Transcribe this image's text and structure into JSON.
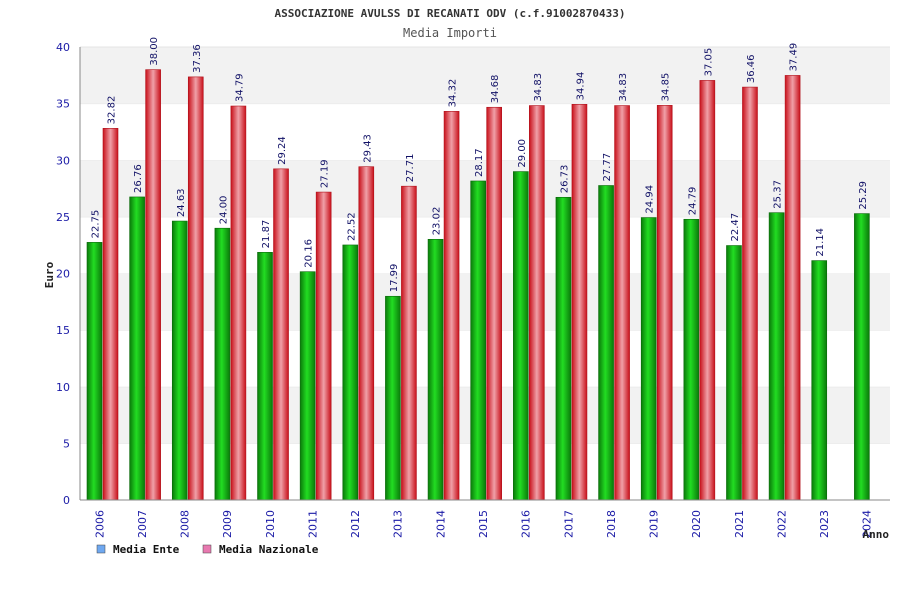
{
  "chart_data": {
    "type": "bar",
    "title": "ASSOCIAZIONE AVULSS DI RECANATI ODV (c.f.91002870433)",
    "subtitle": "Media Importi",
    "xlabel": "Anno",
    "ylabel": "Euro",
    "ylim": [
      0,
      40
    ],
    "yticks": [
      "0",
      "5",
      "10",
      "15",
      "20",
      "25",
      "30",
      "35",
      "40"
    ],
    "grid": true,
    "legend_position": "bottom-left",
    "categories": [
      "2006",
      "2007",
      "2008",
      "2009",
      "2010",
      "2011",
      "2012",
      "2013",
      "2014",
      "2015",
      "2016",
      "2017",
      "2018",
      "2019",
      "2020",
      "2021",
      "2022",
      "2023",
      "2024"
    ],
    "series": [
      {
        "name": "Media Ente",
        "color": "#12b012",
        "legend_color": "#6fa8f0",
        "values": [
          22.75,
          26.76,
          24.63,
          24.0,
          21.87,
          20.16,
          22.52,
          17.99,
          23.02,
          28.17,
          29.0,
          26.73,
          27.77,
          24.94,
          24.79,
          22.47,
          25.37,
          21.14,
          25.29
        ],
        "labels": [
          "22.75",
          "26.76",
          "24.63",
          "24.00",
          "21.87",
          "20.16",
          "22.52",
          "17.99",
          "23.02",
          "28.17",
          "29.00",
          "26.73",
          "27.77",
          "24.94",
          "24.79",
          "22.47",
          "25.37",
          "21.14",
          "25.29"
        ]
      },
      {
        "name": "Media Nazionale",
        "color": "#e8202a",
        "legend_color": "#e879b0",
        "values": [
          32.82,
          38.0,
          37.36,
          34.79,
          29.24,
          27.19,
          29.43,
          27.71,
          34.32,
          34.68,
          34.83,
          34.94,
          34.83,
          34.85,
          37.05,
          36.46,
          37.49,
          null,
          null
        ],
        "labels": [
          "32.82",
          "38.00",
          "37.36",
          "34.79",
          "29.24",
          "27.19",
          "29.43",
          "27.71",
          "34.32",
          "34.68",
          "34.83",
          "34.94",
          "34.83",
          "34.85",
          "37.05",
          "36.46",
          "37.49",
          "",
          ""
        ]
      }
    ]
  }
}
